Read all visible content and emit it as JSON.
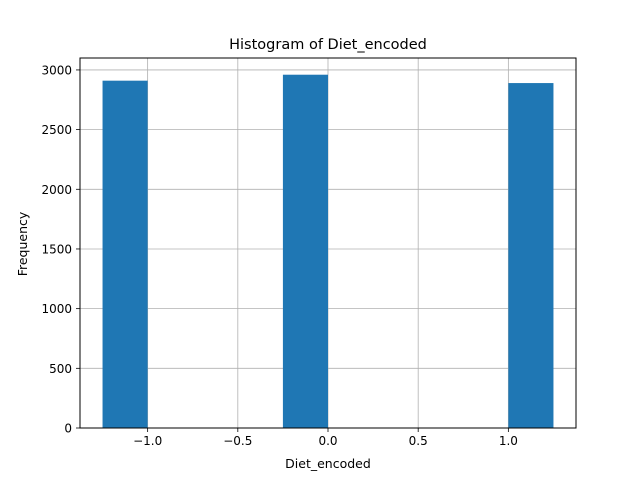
{
  "chart_data": {
    "type": "bar",
    "title": "Histogram of Diet_encoded",
    "xlabel": "Diet_encoded",
    "ylabel": "Frequency",
    "xlim": [
      -1.375,
      1.375
    ],
    "ylim": [
      0,
      3100
    ],
    "xticks": [
      -1.0,
      -0.5,
      0.0,
      0.5,
      1.0
    ],
    "xtick_labels": [
      "−1.0",
      "−0.5",
      "0.0",
      "0.5",
      "1.0"
    ],
    "yticks": [
      0,
      500,
      1000,
      1500,
      2000,
      2500,
      3000
    ],
    "ytick_labels": [
      "0",
      "500",
      "1000",
      "1500",
      "2000",
      "2500",
      "3000"
    ],
    "grid": true,
    "bins": [
      {
        "x0": -1.25,
        "x1": -1.0,
        "value": 2910
      },
      {
        "x0": -0.25,
        "x1": 0.0,
        "value": 2960
      },
      {
        "x0": 1.0,
        "x1": 1.25,
        "value": 2890
      }
    ],
    "bar_color": "#1f77b4",
    "grid_color": "#b0b0b0"
  }
}
